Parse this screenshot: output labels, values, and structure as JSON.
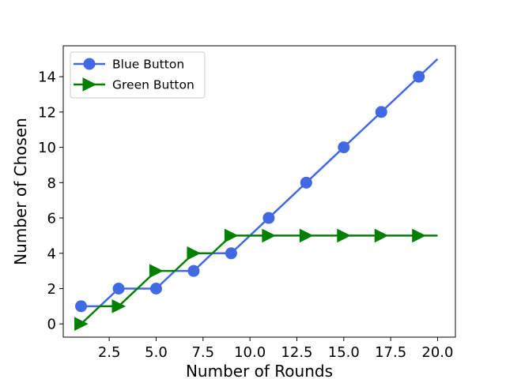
{
  "chart_data": {
    "type": "line",
    "xlabel": "Number of Rounds",
    "ylabel": "Number of Chosen",
    "xlim": [
      0.05,
      20.95
    ],
    "ylim": [
      -0.75,
      15.75
    ],
    "xticks": [
      2.5,
      5.0,
      7.5,
      10.0,
      12.5,
      15.0,
      17.5,
      20.0
    ],
    "xtick_labels": [
      "2.5",
      "5.0",
      "7.5",
      "10.0",
      "12.5",
      "15.0",
      "17.5",
      "20.0"
    ],
    "yticks": [
      0,
      2,
      4,
      6,
      8,
      10,
      12,
      14
    ],
    "ytick_labels": [
      "0",
      "2",
      "4",
      "6",
      "8",
      "10",
      "12",
      "14"
    ],
    "grid": false,
    "legend_position": "upper-left",
    "series": [
      {
        "name": "Blue Button",
        "color": "#4169e1",
        "marker": "circle",
        "line_style": "solid",
        "x": [
          1,
          2,
          3,
          4,
          5,
          6,
          7,
          8,
          9,
          10,
          11,
          12,
          13,
          14,
          15,
          16,
          17,
          18,
          19,
          20
        ],
        "y": [
          1,
          1,
          2,
          2,
          2,
          3,
          3,
          4,
          4,
          5,
          6,
          7,
          8,
          9,
          10,
          11,
          12,
          13,
          14,
          15
        ],
        "marker_every": 2
      },
      {
        "name": "Green Button",
        "color": "#008000",
        "marker": "triangle-right",
        "line_style": "solid",
        "x": [
          1,
          2,
          3,
          4,
          5,
          6,
          7,
          8,
          9,
          10,
          11,
          12,
          13,
          14,
          15,
          16,
          17,
          18,
          19,
          20
        ],
        "y": [
          0,
          1,
          1,
          2,
          3,
          3,
          4,
          4,
          5,
          5,
          5,
          5,
          5,
          5,
          5,
          5,
          5,
          5,
          5,
          5
        ],
        "marker_every": 2
      }
    ]
  }
}
